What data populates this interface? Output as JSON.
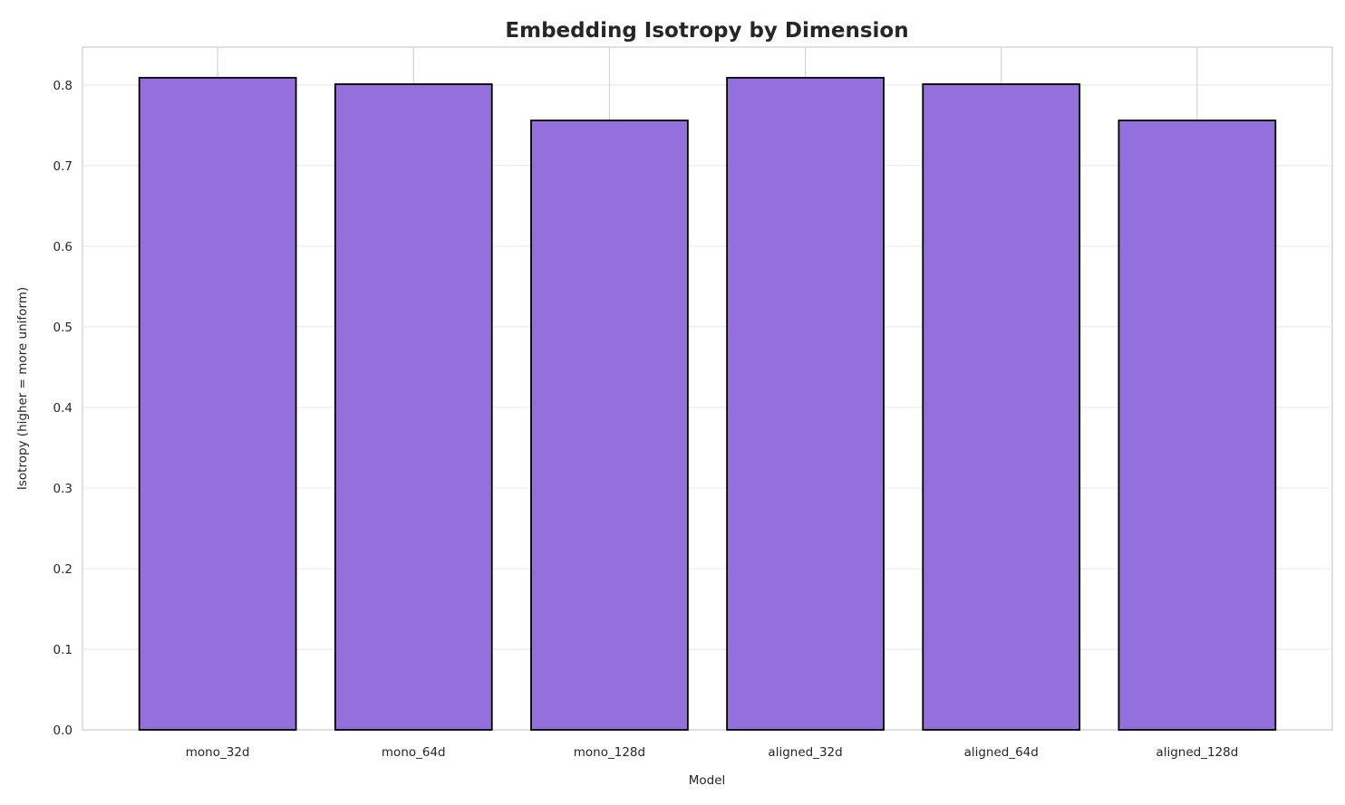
{
  "chart_data": {
    "type": "bar",
    "title": "Embedding Isotropy by Dimension",
    "xlabel": "Model",
    "ylabel": "Isotropy (higher = more uniform)",
    "categories": [
      "mono_32d",
      "mono_64d",
      "mono_128d",
      "aligned_32d",
      "aligned_64d",
      "aligned_128d"
    ],
    "values": [
      0.809,
      0.801,
      0.756,
      0.809,
      0.801,
      0.756
    ],
    "ylim": [
      0,
      0.847
    ],
    "yticks": [
      "0.0",
      "0.1",
      "0.2",
      "0.3",
      "0.4",
      "0.5",
      "0.6",
      "0.7",
      "0.8"
    ],
    "grid": true,
    "bar_color": "#9370DB",
    "edge_color": "#000000"
  }
}
